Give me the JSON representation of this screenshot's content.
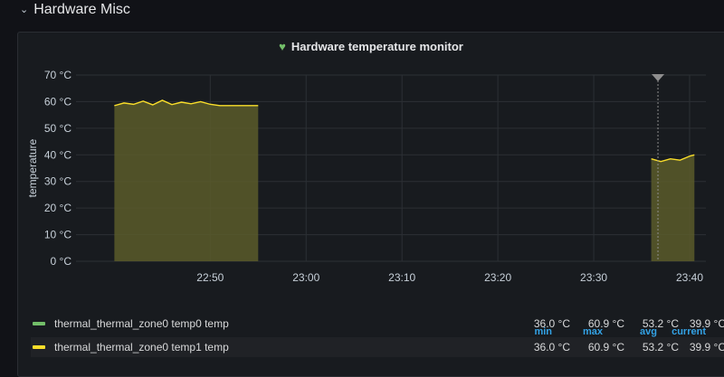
{
  "row": {
    "title": "Hardware Misc"
  },
  "panel": {
    "title": "Hardware temperature monitor"
  },
  "legend": {
    "headers": {
      "min": "min",
      "max": "max",
      "avg": "avg",
      "current": "current"
    },
    "series": [
      {
        "name": "thermal_thermal_zone0 temp0 temp",
        "color": "#73bf69",
        "min": "36.0 °C",
        "max": "60.9 °C",
        "avg": "53.2 °C",
        "current": "39.9 °C"
      },
      {
        "name": "thermal_thermal_zone0 temp1 temp",
        "color": "#fade2a",
        "min": "36.0 °C",
        "max": "60.9 °C",
        "avg": "53.2 °C",
        "current": "39.9 °C"
      }
    ]
  },
  "chart_data": {
    "type": "area",
    "ylabel": "temperature",
    "ylim": [
      0,
      70
    ],
    "yticks": [
      "0 °C",
      "10 °C",
      "20 °C",
      "30 °C",
      "40 °C",
      "50 °C",
      "60 °C",
      "70 °C"
    ],
    "xticks": [
      "22:50",
      "23:00",
      "23:10",
      "23:20",
      "23:30",
      "23:40"
    ],
    "fill_color": "#5a5a2a",
    "line_color": "#fade2a",
    "segments": [
      {
        "x": [
          "22:40",
          "22:41",
          "22:42",
          "22:43",
          "22:44",
          "22:45",
          "22:46",
          "22:47",
          "22:48",
          "22:49",
          "22:50",
          "22:51",
          "22:52",
          "22:53",
          "22:54",
          "22:55"
        ],
        "y": [
          58.5,
          59.5,
          59.0,
          60.2,
          58.8,
          60.5,
          58.9,
          59.8,
          59.2,
          60.0,
          59.0,
          58.5,
          58.5,
          58.5,
          58.5,
          58.5
        ]
      },
      {
        "x": [
          "23:36",
          "23:37",
          "23:38",
          "23:39",
          "23:40",
          "23:40.5"
        ],
        "y": [
          38.5,
          37.5,
          38.5,
          38.0,
          39.5,
          40.0
        ]
      }
    ],
    "annotation_time": "23:36.7"
  }
}
